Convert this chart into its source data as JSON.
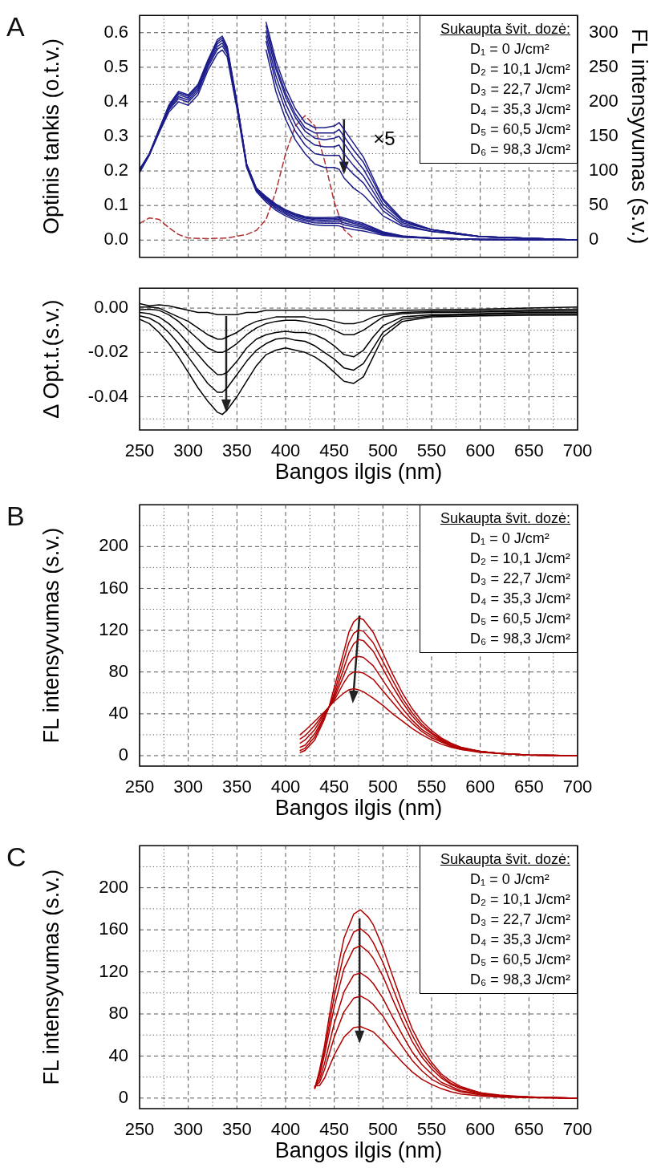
{
  "chart_data": [
    {
      "type": "line",
      "title": "A",
      "ylabel": "Optinis tankis (o.t.v.)",
      "y2label": "FL intensyvumas (s.v.)",
      "xlim": [
        250,
        700
      ],
      "xticks": [
        250,
        {
          "value": 275,
          "label": null
        },
        300,
        {
          "value": 325,
          "label": null
        },
        350,
        {
          "value": 375,
          "label": null
        },
        400,
        {
          "value": 425,
          "label": null
        },
        450,
        {
          "value": 475,
          "label": null
        },
        500,
        {
          "value": 525,
          "label": null
        },
        550,
        {
          "value": 575,
          "label": null
        },
        600,
        {
          "value": 625,
          "label": null
        },
        650,
        {
          "value": 675,
          "label": null
        },
        700
      ],
      "ylim": [
        -0.05,
        0.65
      ],
      "yticks": [
        {
          "value": 0,
          "label": "0.0"
        },
        {
          "value": 0.05,
          "label": null
        },
        0.1,
        {
          "value": 0.15,
          "label": null
        },
        0.2,
        {
          "value": 0.25,
          "label": null
        },
        0.3,
        {
          "value": 0.35,
          "label": null
        },
        0.4,
        {
          "value": 0.45,
          "label": null
        },
        0.5,
        {
          "value": 0.55,
          "label": null
        },
        0.6
      ],
      "y2lim": [
        -25,
        325
      ],
      "y2ticks": [
        0,
        50,
        100,
        150,
        200,
        250,
        300
      ],
      "tick_labels": "y",
      "grid": true,
      "marker": "none",
      "annotations": [
        "Sukaupta švit. dozė:",
        "D₁ = 0 J/cm²",
        "D₂ = 10,1 J/cm²",
        "D₃ = 22,7 J/cm²",
        "D₄ = 35,3 J/cm²",
        "D₅ = 60,5 J/cm²",
        "D₆ = 98,3 J/cm²",
        "×5"
      ],
      "x": [
        250,
        260,
        270,
        280,
        290,
        300,
        310,
        320,
        330,
        335,
        340,
        350,
        360,
        370,
        380,
        390,
        400,
        410,
        420,
        430,
        440,
        450,
        455,
        460,
        470,
        480,
        490,
        500,
        520,
        550,
        600,
        650,
        700
      ],
      "series": [
        {
          "color": "#1c1c8a",
          "values": [
            0.205,
            0.25,
            0.32,
            0.39,
            0.43,
            0.42,
            0.45,
            0.52,
            0.58,
            0.59,
            0.56,
            0.4,
            0.22,
            0.15,
            0.126,
            0.104,
            0.088,
            0.076,
            0.068,
            0.065,
            0.065,
            0.066,
            0.068,
            0.064,
            0.056,
            0.048,
            0.036,
            0.024,
            0.012,
            0.006,
            0.002,
            0.001,
            0
          ]
        },
        {
          "color": "#1c1c8a",
          "values": [
            0.203,
            0.249,
            0.319,
            0.387,
            0.426,
            0.416,
            0.446,
            0.516,
            0.574,
            0.584,
            0.556,
            0.397,
            0.219,
            0.149,
            0.124,
            0.101,
            0.085,
            0.073,
            0.065,
            0.062,
            0.062,
            0.062,
            0.064,
            0.06,
            0.052,
            0.045,
            0.034,
            0.023,
            0.011,
            0.006,
            0.002,
            0.001,
            0
          ]
        },
        {
          "color": "#1c1c8a",
          "values": [
            0.201,
            0.249,
            0.317,
            0.384,
            0.421,
            0.411,
            0.441,
            0.511,
            0.568,
            0.578,
            0.551,
            0.394,
            0.217,
            0.147,
            0.121,
            0.099,
            0.083,
            0.071,
            0.063,
            0.059,
            0.058,
            0.059,
            0.06,
            0.056,
            0.048,
            0.041,
            0.031,
            0.021,
            0.011,
            0.006,
            0.002,
            0.001,
            0
          ]
        },
        {
          "color": "#1c1c8a",
          "values": [
            0.199,
            0.248,
            0.315,
            0.38,
            0.415,
            0.405,
            0.435,
            0.505,
            0.56,
            0.57,
            0.545,
            0.39,
            0.215,
            0.145,
            0.118,
            0.095,
            0.079,
            0.067,
            0.059,
            0.055,
            0.054,
            0.054,
            0.055,
            0.05,
            0.043,
            0.037,
            0.028,
            0.019,
            0.01,
            0.006,
            0.002,
            0.001,
            0
          ]
        },
        {
          "color": "#1c1c8a",
          "values": [
            0.197,
            0.247,
            0.313,
            0.376,
            0.409,
            0.399,
            0.429,
            0.499,
            0.552,
            0.562,
            0.539,
            0.386,
            0.213,
            0.143,
            0.115,
            0.091,
            0.075,
            0.063,
            0.055,
            0.05,
            0.049,
            0.049,
            0.049,
            0.044,
            0.038,
            0.033,
            0.025,
            0.017,
            0.009,
            0.005,
            0.002,
            0.001,
            0
          ]
        },
        {
          "color": "#1c1c8a",
          "values": [
            0.195,
            0.245,
            0.31,
            0.37,
            0.4,
            0.39,
            0.42,
            0.49,
            0.54,
            0.55,
            0.53,
            0.38,
            0.21,
            0.14,
            0.11,
            0.086,
            0.07,
            0.058,
            0.05,
            0.044,
            0.042,
            0.042,
            0.041,
            0.036,
            0.03,
            0.026,
            0.02,
            0.014,
            0.008,
            0.005,
            0.002,
            0.001,
            0
          ]
        },
        {
          "color": "#1c1c8a",
          "values": [
            null,
            null,
            null,
            null,
            null,
            null,
            null,
            null,
            null,
            null,
            null,
            null,
            null,
            null,
            0.63,
            0.52,
            0.44,
            0.38,
            0.34,
            0.325,
            0.325,
            0.33,
            0.34,
            0.32,
            0.28,
            0.24,
            0.18,
            0.12,
            0.06,
            0.03,
            0.01,
            0.005,
            0
          ]
        },
        {
          "color": "#1c1c8a",
          "values": [
            null,
            null,
            null,
            null,
            null,
            null,
            null,
            null,
            null,
            null,
            null,
            null,
            null,
            null,
            0.62,
            0.505,
            0.425,
            0.365,
            0.325,
            0.31,
            0.31,
            0.31,
            0.32,
            0.3,
            0.26,
            0.225,
            0.17,
            0.115,
            0.055,
            0.03,
            0.01,
            0.005,
            0
          ]
        },
        {
          "color": "#1c1c8a",
          "values": [
            null,
            null,
            null,
            null,
            null,
            null,
            null,
            null,
            null,
            null,
            null,
            null,
            null,
            null,
            0.605,
            0.495,
            0.415,
            0.355,
            0.315,
            0.295,
            0.29,
            0.295,
            0.3,
            0.28,
            0.24,
            0.205,
            0.155,
            0.105,
            0.055,
            0.03,
            0.01,
            0.005,
            0
          ]
        },
        {
          "color": "#1c1c8a",
          "values": [
            null,
            null,
            null,
            null,
            null,
            null,
            null,
            null,
            null,
            null,
            null,
            null,
            null,
            null,
            0.59,
            0.475,
            0.395,
            0.335,
            0.295,
            0.275,
            0.27,
            0.27,
            0.275,
            0.25,
            0.215,
            0.185,
            0.14,
            0.095,
            0.05,
            0.03,
            0.01,
            0.005,
            0
          ]
        },
        {
          "color": "#1c1c8a",
          "values": [
            null,
            null,
            null,
            null,
            null,
            null,
            null,
            null,
            null,
            null,
            null,
            null,
            null,
            null,
            0.575,
            0.455,
            0.375,
            0.315,
            0.275,
            0.25,
            0.245,
            0.245,
            0.245,
            0.22,
            0.19,
            0.165,
            0.125,
            0.085,
            0.045,
            0.025,
            0.01,
            0.005,
            0
          ]
        },
        {
          "color": "#1c1c8a",
          "values": [
            null,
            null,
            null,
            null,
            null,
            null,
            null,
            null,
            null,
            null,
            null,
            null,
            null,
            null,
            0.55,
            0.43,
            0.35,
            0.29,
            0.25,
            0.22,
            0.21,
            0.21,
            0.205,
            0.18,
            0.15,
            0.13,
            0.1,
            0.07,
            0.04,
            0.025,
            0.01,
            0.005,
            0
          ]
        },
        {
          "color": "#b03030",
          "axis": "y2",
          "line_style": "dashed",
          "x": [
            250,
            260,
            270,
            280,
            290,
            300,
            320,
            340,
            360,
            370,
            380,
            390,
            400,
            410,
            420,
            430,
            440,
            450,
            460,
            470
          ],
          "values": [
            24,
            32,
            30,
            18,
            8,
            3,
            2,
            3,
            8,
            14,
            30,
            70,
            125,
            165,
            180,
            165,
            115,
            55,
            15,
            2
          ]
        }
      ]
    },
    {
      "type": "line",
      "xlabel": "Bangos ilgis (nm)",
      "ylabel": "Δ Opt.t.(s.v.)",
      "xlim": [
        250,
        700
      ],
      "xticks": [
        250,
        {
          "value": 275,
          "label": null
        },
        300,
        {
          "value": 325,
          "label": null
        },
        350,
        {
          "value": 375,
          "label": null
        },
        400,
        {
          "value": 425,
          "label": null
        },
        450,
        {
          "value": 475,
          "label": null
        },
        500,
        {
          "value": 525,
          "label": null
        },
        550,
        {
          "value": 575,
          "label": null
        },
        600,
        {
          "value": 625,
          "label": null
        },
        650,
        {
          "value": 675,
          "label": null
        },
        700
      ],
      "ylim": [
        -0.055,
        0.009
      ],
      "yticks": [
        {
          "value": -0.05,
          "label": null
        },
        -0.04,
        {
          "value": -0.03,
          "label": null
        },
        -0.02,
        {
          "value": -0.01,
          "label": null
        },
        {
          "value": 0,
          "label": "0.00"
        }
      ],
      "grid": true,
      "marker": "none",
      "x": [
        250,
        260,
        270,
        280,
        290,
        300,
        310,
        320,
        330,
        335,
        340,
        350,
        360,
        370,
        380,
        390,
        400,
        410,
        420,
        430,
        440,
        450,
        460,
        470,
        480,
        490,
        500,
        520,
        550,
        600,
        650,
        700
      ],
      "series": [
        {
          "color": "#000000",
          "values": [
            0.002,
            0.001,
            0.0015,
            0.001,
            0,
            -0.001,
            -0.002,
            -0.002,
            -0.003,
            -0.003,
            -0.003,
            -0.003,
            -0.002,
            -0.002,
            -0.001,
            -0.001,
            -0.001,
            -0.001,
            -0.001,
            -0.001,
            -0.001,
            -0.001,
            -0.001,
            -0.001,
            -0.001,
            -0.001,
            -0.001,
            -0.001,
            -0.0008,
            -0.0005,
            0,
            0.0005
          ]
        },
        {
          "color": "#000000",
          "values": [
            0.0005,
            0.0005,
            0,
            -0.002,
            -0.004,
            -0.006,
            -0.009,
            -0.012,
            -0.014,
            -0.014,
            -0.013,
            -0.011,
            -0.008,
            -0.006,
            -0.005,
            -0.004,
            -0.004,
            -0.004,
            -0.004,
            -0.005,
            -0.005,
            -0.006,
            -0.007,
            -0.007,
            -0.006,
            -0.004,
            -0.003,
            -0.002,
            -0.0015,
            -0.0012,
            -0.0008,
            -0.0005
          ]
        },
        {
          "color": "#000000",
          "values": [
            -0.0008,
            -0.0005,
            -0.001,
            -0.003,
            -0.006,
            -0.01,
            -0.014,
            -0.018,
            -0.02,
            -0.02,
            -0.019,
            -0.016,
            -0.012,
            -0.009,
            -0.007,
            -0.006,
            -0.0055,
            -0.0055,
            -0.006,
            -0.007,
            -0.008,
            -0.01,
            -0.012,
            -0.012,
            -0.01,
            -0.007,
            -0.004,
            -0.0025,
            -0.002,
            -0.0018,
            -0.0014,
            -0.0012
          ]
        },
        {
          "color": "#000000",
          "values": [
            -0.002,
            -0.0025,
            -0.004,
            -0.007,
            -0.011,
            -0.016,
            -0.021,
            -0.026,
            -0.03,
            -0.03,
            -0.029,
            -0.024,
            -0.018,
            -0.014,
            -0.012,
            -0.011,
            -0.0105,
            -0.011,
            -0.011,
            -0.012,
            -0.014,
            -0.017,
            -0.021,
            -0.022,
            -0.019,
            -0.013,
            -0.008,
            -0.004,
            -0.003,
            -0.0025,
            -0.002,
            -0.0019
          ]
        },
        {
          "color": "#000000",
          "values": [
            -0.0035,
            -0.0045,
            -0.007,
            -0.011,
            -0.016,
            -0.022,
            -0.028,
            -0.034,
            -0.038,
            -0.038,
            -0.036,
            -0.03,
            -0.024,
            -0.019,
            -0.016,
            -0.014,
            -0.0135,
            -0.0145,
            -0.015,
            -0.017,
            -0.02,
            -0.023,
            -0.027,
            -0.028,
            -0.025,
            -0.018,
            -0.011,
            -0.005,
            -0.0035,
            -0.003,
            -0.0026,
            -0.0025
          ]
        },
        {
          "color": "#000000",
          "values": [
            -0.005,
            -0.007,
            -0.011,
            -0.016,
            -0.022,
            -0.029,
            -0.036,
            -0.042,
            -0.047,
            -0.048,
            -0.046,
            -0.04,
            -0.033,
            -0.026,
            -0.021,
            -0.019,
            -0.018,
            -0.019,
            -0.02,
            -0.022,
            -0.025,
            -0.029,
            -0.033,
            -0.034,
            -0.031,
            -0.022,
            -0.013,
            -0.006,
            -0.004,
            -0.0035,
            -0.0032,
            -0.0031
          ]
        }
      ]
    },
    {
      "type": "line",
      "title": "B",
      "xlabel": "Bangos ilgis (nm)",
      "ylabel": "FL intensyvumas (s.v.)",
      "xlim": [
        250,
        700
      ],
      "xticks": [
        250,
        {
          "value": 275,
          "label": null
        },
        300,
        {
          "value": 325,
          "label": null
        },
        350,
        {
          "value": 375,
          "label": null
        },
        400,
        {
          "value": 425,
          "label": null
        },
        450,
        {
          "value": 475,
          "label": null
        },
        500,
        {
          "value": 525,
          "label": null
        },
        550,
        {
          "value": 575,
          "label": null
        },
        600,
        {
          "value": 625,
          "label": null
        },
        650,
        {
          "value": 675,
          "label": null
        },
        700
      ],
      "ylim": [
        -10,
        240
      ],
      "yticks": [
        0,
        {
          "value": 20,
          "label": null
        },
        40,
        {
          "value": 60,
          "label": null
        },
        80,
        {
          "value": 100,
          "label": null
        },
        120,
        {
          "value": 140,
          "label": null
        },
        160,
        {
          "value": 180,
          "label": null
        },
        200,
        {
          "value": 220,
          "label": null
        }
      ],
      "grid": true,
      "marker": "none",
      "annotations": [
        "Sukaupta švit. dozė:",
        "D₁ = 0 J/cm²",
        "D₂ = 10,1 J/cm²",
        "D₃ = 22,7 J/cm²",
        "D₄ = 35,3 J/cm²",
        "D₅ = 60,5 J/cm²",
        "D₆ = 98,3 J/cm²"
      ],
      "x": [
        415,
        420,
        430,
        440,
        445,
        450,
        460,
        465,
        470,
        475,
        480,
        490,
        500,
        510,
        520,
        530,
        540,
        550,
        560,
        570,
        580,
        600,
        620,
        650,
        700
      ],
      "series": [
        {
          "color": "#b00000",
          "values": [
            3,
            5,
            15,
            35,
            48,
            65,
            100,
            118,
            128,
            132,
            130,
            118,
            98,
            78,
            60,
            45,
            33,
            24,
            17,
            12,
            8,
            4,
            2,
            0.5,
            0
          ]
        },
        {
          "color": "#b00000",
          "values": [
            5,
            7,
            18,
            37,
            47,
            60,
            92,
            108,
            117,
            120,
            119,
            108,
            90,
            72,
            55,
            41,
            30,
            22,
            16,
            11,
            8,
            4,
            2,
            0.5,
            0
          ]
        },
        {
          "color": "#b00000",
          "values": [
            8,
            10,
            21,
            38,
            47,
            57,
            84,
            98,
            107,
            111,
            110,
            100,
            83,
            66,
            51,
            38,
            28,
            21,
            15,
            10,
            7,
            4,
            2,
            0.5,
            0
          ]
        },
        {
          "color": "#b00000",
          "values": [
            12,
            15,
            25,
            40,
            47,
            55,
            77,
            88,
            94,
            95,
            94,
            86,
            72,
            58,
            45,
            34,
            25,
            19,
            14,
            10,
            7,
            4,
            2,
            0.5,
            0
          ]
        },
        {
          "color": "#b00000",
          "values": [
            16,
            19,
            29,
            41,
            47,
            53,
            70,
            77,
            80,
            80,
            79,
            73,
            62,
            51,
            40,
            31,
            23,
            17,
            13,
            9,
            6,
            4,
            2,
            0.5,
            0
          ]
        },
        {
          "color": "#b00000",
          "values": [
            20,
            24,
            33,
            42,
            47,
            52,
            60,
            63,
            64,
            63,
            61,
            55,
            48,
            40,
            33,
            26,
            20,
            15,
            11,
            8,
            6,
            3,
            2,
            0.5,
            0
          ]
        }
      ]
    },
    {
      "type": "line",
      "title": "C",
      "xlabel": "Bangos ilgis (nm)",
      "ylabel": "FL intensyvumas (s.v.)",
      "xlim": [
        250,
        700
      ],
      "xticks": [
        250,
        {
          "value": 275,
          "label": null
        },
        300,
        {
          "value": 325,
          "label": null
        },
        350,
        {
          "value": 375,
          "label": null
        },
        400,
        {
          "value": 425,
          "label": null
        },
        450,
        {
          "value": 475,
          "label": null
        },
        500,
        {
          "value": 525,
          "label": null
        },
        550,
        {
          "value": 575,
          "label": null
        },
        600,
        {
          "value": 625,
          "label": null
        },
        650,
        {
          "value": 675,
          "label": null
        },
        700
      ],
      "ylim": [
        -10,
        240
      ],
      "yticks": [
        0,
        {
          "value": 20,
          "label": null
        },
        40,
        {
          "value": 60,
          "label": null
        },
        80,
        {
          "value": 100,
          "label": null
        },
        120,
        {
          "value": 140,
          "label": null
        },
        160,
        {
          "value": 180,
          "label": null
        },
        200,
        {
          "value": 220,
          "label": null
        }
      ],
      "grid": true,
      "marker": "none",
      "annotations": [
        "Sukaupta švit. dozė:",
        "D₁ = 0 J/cm²",
        "D₂ = 10,1 J/cm²",
        "D₃ = 22,7 J/cm²",
        "D₄ = 35,3 J/cm²",
        "D₅ = 60,5 J/cm²",
        "D₆ = 98,3 J/cm²"
      ],
      "x": [
        430,
        435,
        440,
        450,
        460,
        470,
        477,
        485,
        490,
        500,
        510,
        520,
        530,
        540,
        550,
        560,
        570,
        580,
        600,
        620,
        650,
        700
      ],
      "series": [
        {
          "color": "#b00000",
          "values": [
            9,
            27,
            50,
            107,
            152,
            175,
            179,
            172,
            165,
            143,
            116,
            90,
            66,
            48,
            34,
            23,
            16,
            11,
            5,
            3,
            1,
            0
          ]
        },
        {
          "color": "#b00000",
          "values": [
            9.5,
            24,
            45,
            97,
            137,
            158,
            161,
            155,
            148,
            129,
            105,
            81,
            60,
            43,
            31,
            21,
            14,
            10,
            5,
            2,
            1,
            0
          ]
        },
        {
          "color": "#b00000",
          "values": [
            10,
            22,
            41,
            87,
            123,
            142,
            145,
            139,
            133,
            116,
            94,
            73,
            54,
            39,
            28,
            19,
            13,
            9,
            4,
            2,
            1,
            0
          ]
        },
        {
          "color": "#b00000",
          "values": [
            10.5,
            18,
            33,
            71,
            101,
            117,
            119,
            114,
            109,
            95,
            77,
            60,
            44,
            32,
            23,
            15,
            11,
            7,
            4,
            2,
            1,
            0
          ]
        },
        {
          "color": "#b00000",
          "values": [
            11,
            15,
            27,
            58,
            82,
            95,
            97,
            93,
            89,
            78,
            63,
            49,
            36,
            26,
            18,
            13,
            9,
            6,
            3,
            1,
            0.5,
            0
          ]
        },
        {
          "color": "#b00000",
          "values": [
            11.5,
            12,
            19,
            41,
            58,
            67,
            68,
            65,
            63,
            54,
            44,
            34,
            25,
            18,
            13,
            9,
            6,
            4,
            2,
            1,
            0.5,
            0
          ]
        }
      ]
    }
  ]
}
